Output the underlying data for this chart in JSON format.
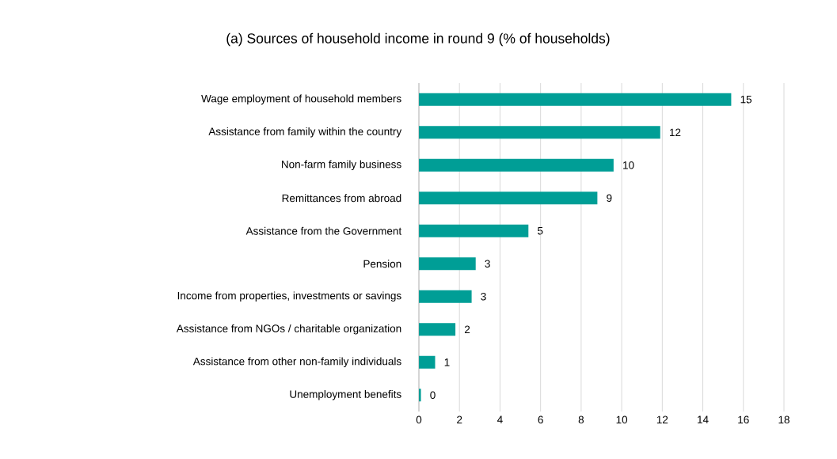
{
  "chart_data": {
    "type": "bar",
    "orientation": "horizontal",
    "title": "(a) Sources of household income in round 9 (% of households)",
    "categories": [
      "Wage employment of household members",
      "Assistance from family within the country",
      "Non-farm family business",
      "Remittances from abroad",
      "Assistance from the Government",
      "Pension",
      "Income from properties, investments or savings",
      "Assistance from NGOs / charitable organization",
      "Assistance from other non-family individuals",
      "Unemployment benefits"
    ],
    "values": [
      15.4,
      11.9,
      9.6,
      8.8,
      5.4,
      2.8,
      2.6,
      1.8,
      0.8,
      0.1
    ],
    "value_labels": [
      "15",
      "12",
      "10",
      "9",
      "5",
      "3",
      "3",
      "2",
      "1",
      "0"
    ],
    "color": "#009e96",
    "xlim": [
      0,
      18
    ],
    "xticks": [
      0,
      2,
      4,
      6,
      8,
      10,
      12,
      14,
      16,
      18
    ],
    "grid": "x"
  }
}
